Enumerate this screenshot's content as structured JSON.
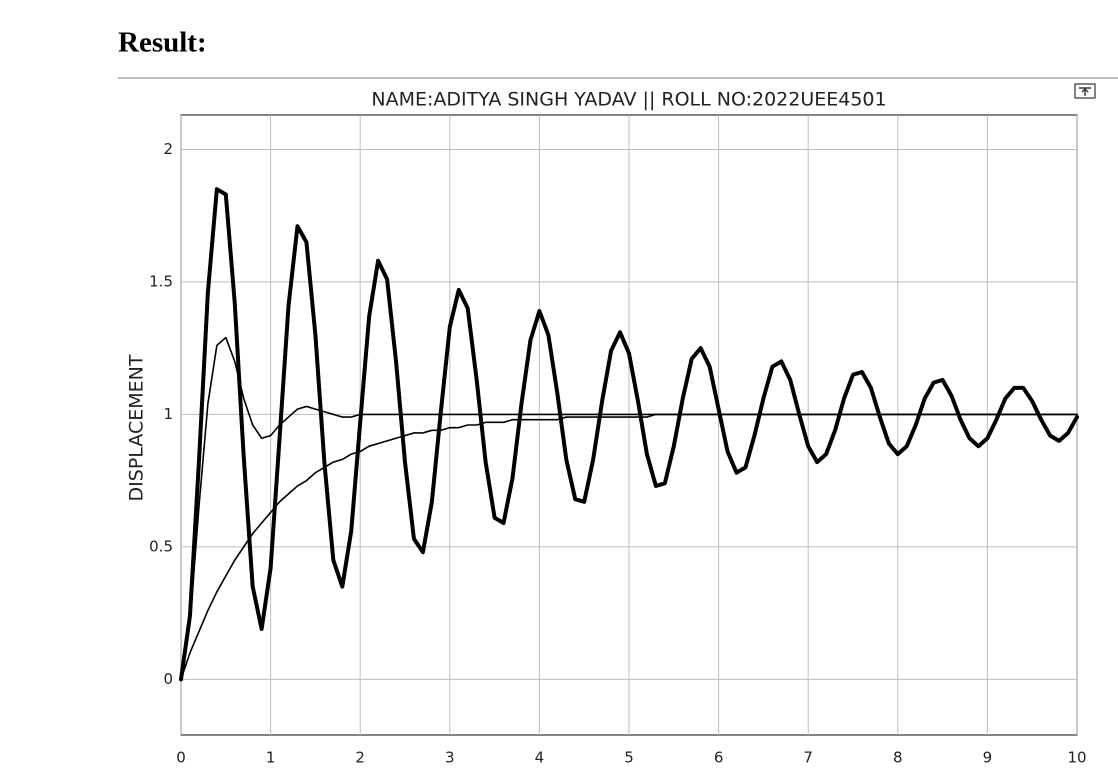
{
  "heading": "Result:",
  "chart_data": {
    "type": "line",
    "title": "NAME:ADITYA SINGH YADAV || ROLL NO:2022UEE4501",
    "y_label": "DISPLACEMENT",
    "x": [
      0,
      0.1,
      0.2,
      0.3,
      0.4,
      0.5,
      0.6,
      0.7,
      0.8,
      0.9,
      1,
      1.1,
      1.2,
      1.3,
      1.4,
      1.5,
      1.6,
      1.7,
      1.8,
      1.9,
      2,
      2.1,
      2.2,
      2.3,
      2.4,
      2.5,
      2.6,
      2.7,
      2.8,
      2.9,
      3,
      3.1,
      3.2,
      3.3,
      3.4,
      3.5,
      3.6,
      3.7,
      3.8,
      3.9,
      4,
      4.1,
      4.2,
      4.3,
      4.4,
      4.5,
      4.6,
      4.7,
      4.8,
      4.9,
      5,
      5.1,
      5.2,
      5.3,
      5.4,
      5.5,
      5.6,
      5.7,
      5.8,
      5.9,
      6,
      6.1,
      6.2,
      6.3,
      6.4,
      6.5,
      6.6,
      6.7,
      6.8,
      6.9,
      7,
      7.1,
      7.2,
      7.3,
      7.4,
      7.5,
      7.6,
      7.7,
      7.8,
      7.9,
      8,
      8.1,
      8.2,
      8.3,
      8.4,
      8.5,
      8.6,
      8.7,
      8.8,
      8.9,
      9,
      9.1,
      9.2,
      9.3,
      9.4,
      9.5,
      9.6,
      9.7,
      9.8,
      9.9,
      10
    ],
    "series": [
      {
        "color": "#000000",
        "line_width": 4,
        "values": [
          0,
          0.24,
          0.82,
          1.46,
          1.85,
          1.83,
          1.42,
          0.84,
          0.35,
          0.19,
          0.42,
          0.91,
          1.41,
          1.71,
          1.65,
          1.3,
          0.82,
          0.45,
          0.35,
          0.56,
          0.97,
          1.37,
          1.58,
          1.51,
          1.2,
          0.82,
          0.53,
          0.48,
          0.67,
          1.01,
          1.33,
          1.47,
          1.4,
          1.13,
          0.82,
          0.61,
          0.59,
          0.76,
          1.04,
          1.28,
          1.39,
          1.3,
          1.08,
          0.83,
          0.68,
          0.67,
          0.83,
          1.05,
          1.24,
          1.31,
          1.23,
          1.05,
          0.85,
          0.73,
          0.74,
          0.88,
          1.06,
          1.21,
          1.25,
          1.18,
          1.02,
          0.86,
          0.78,
          0.8,
          0.92,
          1.06,
          1.18,
          1.2,
          1.13,
          1,
          0.88,
          0.82,
          0.85,
          0.94,
          1.06,
          1.15,
          1.16,
          1.1,
          0.99,
          0.89,
          0.85,
          0.88,
          0.96,
          1.06,
          1.12,
          1.13,
          1.07,
          0.98,
          0.91,
          0.88,
          0.91,
          0.98,
          1.06,
          1.1,
          1.1,
          1.05,
          0.98,
          0.92,
          0.9,
          0.93,
          0.99
        ]
      },
      {
        "color": "#000000",
        "line_width": 1.6,
        "values": [
          0,
          0.21,
          0.65,
          1.04,
          1.26,
          1.29,
          1.2,
          1.06,
          0.96,
          0.91,
          0.92,
          0.96,
          0.99,
          1.02,
          1.03,
          1.02,
          1.01,
          1,
          0.99,
          0.99,
          1,
          1,
          1,
          1,
          1,
          1,
          1,
          1,
          1,
          1,
          1,
          1,
          1,
          1,
          1,
          1,
          1,
          1,
          1,
          1,
          1,
          1,
          1,
          1,
          1,
          1,
          1,
          1,
          1,
          1,
          1,
          1,
          1,
          1,
          1,
          1,
          1,
          1,
          1,
          1,
          1,
          1,
          1,
          1,
          1,
          1,
          1,
          1,
          1,
          1,
          1,
          1,
          1,
          1,
          1,
          1,
          1,
          1,
          1,
          1,
          1,
          1,
          1,
          1,
          1,
          1,
          1,
          1,
          1,
          1,
          1,
          1,
          1,
          1,
          1,
          1,
          1,
          1,
          1,
          1,
          1
        ]
      },
      {
        "color": "#000000",
        "line_width": 1.6,
        "values": [
          0,
          0.1,
          0.18,
          0.26,
          0.33,
          0.39,
          0.45,
          0.5,
          0.55,
          0.59,
          0.63,
          0.67,
          0.7,
          0.73,
          0.75,
          0.78,
          0.8,
          0.82,
          0.83,
          0.85,
          0.86,
          0.88,
          0.89,
          0.9,
          0.91,
          0.92,
          0.93,
          0.93,
          0.94,
          0.94,
          0.95,
          0.95,
          0.96,
          0.96,
          0.97,
          0.97,
          0.97,
          0.98,
          0.98,
          0.98,
          0.98,
          0.98,
          0.98,
          0.99,
          0.99,
          0.99,
          0.99,
          0.99,
          0.99,
          0.99,
          0.99,
          0.99,
          0.99,
          1,
          1,
          1,
          1,
          1,
          1,
          1,
          1,
          1,
          1,
          1,
          1,
          1,
          1,
          1,
          1,
          1,
          1,
          1,
          1,
          1,
          1,
          1,
          1,
          1,
          1,
          1,
          1,
          1,
          1,
          1,
          1,
          1,
          1,
          1,
          1,
          1,
          1,
          1,
          1,
          1,
          1,
          1,
          1,
          1,
          1,
          1,
          1
        ]
      }
    ],
    "xlim": [
      0,
      10
    ],
    "ylim": [
      -0.21,
      2.13
    ],
    "xticks": [
      0,
      1,
      2,
      3,
      4,
      5,
      6,
      7,
      8,
      9,
      10
    ],
    "yticks": [
      0,
      0.5,
      1,
      1.5,
      2
    ],
    "grid": true
  }
}
